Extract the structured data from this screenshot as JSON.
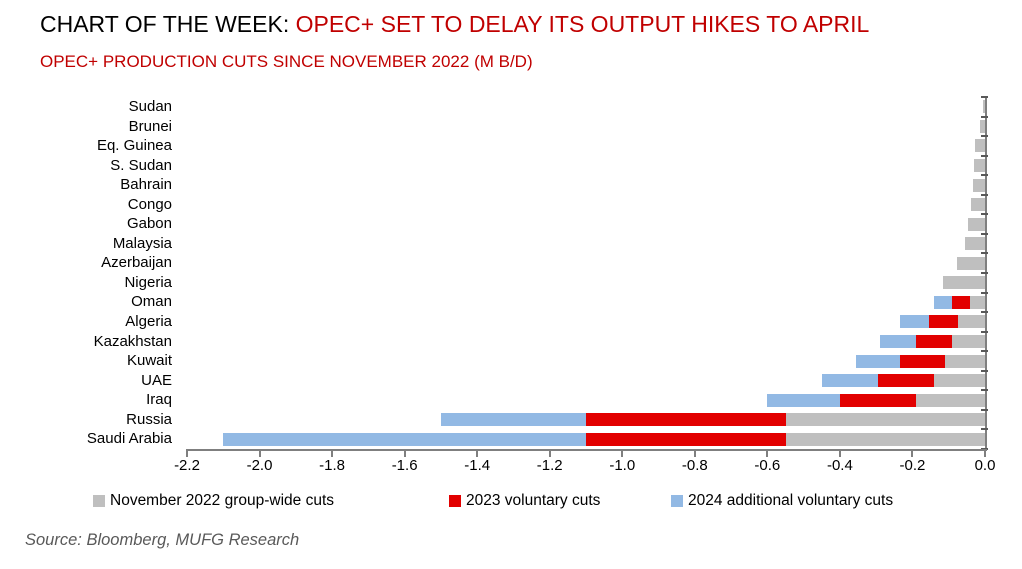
{
  "header": {
    "title_prefix": "CHART OF THE WEEK: ",
    "title_highlight": "OPEC+ SET TO DELAY ITS OUTPUT HIKES TO APRIL",
    "subtitle": "OPEC+ PRODUCTION CUTS SINCE NOVEMBER 2022 (M B/D)"
  },
  "footer": {
    "source": "Source: Bloomberg, MUFG Research"
  },
  "colors": {
    "title_accent": "#c00000",
    "axis": "#7f7f7f",
    "gray_series": "#bfbfbf",
    "red_series": "#e20000",
    "blue_series": "#92b9e4"
  },
  "chart_data": {
    "type": "bar",
    "orientation": "horizontal",
    "stacked": true,
    "title": "CHART OF THE WEEK: OPEC+ SET TO DELAY ITS OUTPUT HIKES TO APRIL",
    "subtitle": "OPEC+ PRODUCTION CUTS SINCE NOVEMBER 2022 (M B/D)",
    "xlabel": "",
    "ylabel": "",
    "unit": "M b/d",
    "xlim": [
      -2.2,
      0.0
    ],
    "grid": false,
    "legend_position": "bottom",
    "categories": [
      "Sudan",
      "Brunei",
      "Eq. Guinea",
      "S. Sudan",
      "Bahrain",
      "Congo",
      "Gabon",
      "Malaysia",
      "Azerbaijan",
      "Nigeria",
      "Oman",
      "Algeria",
      "Kazakhstan",
      "Kuwait",
      "UAE",
      "Iraq",
      "Russia",
      "Saudi Arabia"
    ],
    "series": [
      {
        "name": "November 2022 group-wide cuts",
        "color": "#bfbfbf",
        "values": [
          -0.005,
          -0.015,
          -0.028,
          -0.029,
          -0.034,
          -0.038,
          -0.047,
          -0.056,
          -0.076,
          -0.115,
          -0.04,
          -0.075,
          -0.09,
          -0.11,
          -0.14,
          -0.19,
          -0.55,
          -0.55
        ]
      },
      {
        "name": "2023 voluntary cuts",
        "color": "#e20000",
        "values": [
          0,
          0,
          0,
          0,
          0,
          0,
          0,
          0,
          0,
          0,
          -0.05,
          -0.08,
          -0.1,
          -0.125,
          -0.155,
          -0.21,
          -0.55,
          -0.55
        ]
      },
      {
        "name": "2024 additional voluntary cuts",
        "color": "#92b9e4",
        "values": [
          0,
          0,
          0,
          0,
          0,
          0,
          0,
          0,
          0,
          0,
          -0.05,
          -0.08,
          -0.1,
          -0.12,
          -0.155,
          -0.2,
          -0.4,
          -1.0
        ]
      }
    ],
    "totals": [
      -0.005,
      -0.015,
      -0.028,
      -0.029,
      -0.034,
      -0.038,
      -0.047,
      -0.056,
      -0.076,
      -0.115,
      -0.14,
      -0.235,
      -0.29,
      -0.355,
      -0.45,
      -0.6,
      -1.5,
      -2.1
    ],
    "xtick_values": [
      -2.2,
      -2.0,
      -1.8,
      -1.6,
      -1.4,
      -1.2,
      -1.0,
      -0.8,
      -0.6,
      -0.4,
      -0.2,
      0.0
    ],
    "xtick_labels": [
      "-2.2",
      "-2.0",
      "-1.8",
      "-1.6",
      "-1.4",
      "-1.2",
      "-1.0",
      "-0.8",
      "-0.6",
      "-0.4",
      "-0.2",
      "0.0"
    ],
    "legend_x_positions": [
      93,
      449,
      671
    ]
  }
}
